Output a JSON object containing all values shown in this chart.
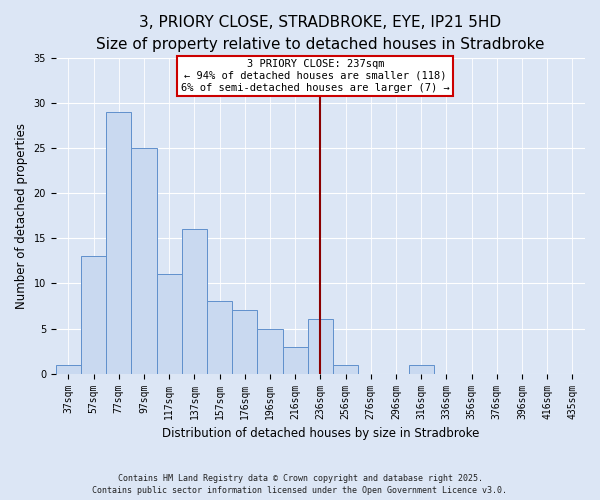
{
  "title": "3, PRIORY CLOSE, STRADBROKE, EYE, IP21 5HD",
  "subtitle": "Size of property relative to detached houses in Stradbroke",
  "xlabel": "Distribution of detached houses by size in Stradbroke",
  "ylabel": "Number of detached properties",
  "bar_labels": [
    "37sqm",
    "57sqm",
    "77sqm",
    "97sqm",
    "117sqm",
    "137sqm",
    "157sqm",
    "176sqm",
    "196sqm",
    "216sqm",
    "236sqm",
    "256sqm",
    "276sqm",
    "296sqm",
    "316sqm",
    "336sqm",
    "356sqm",
    "376sqm",
    "396sqm",
    "416sqm",
    "435sqm"
  ],
  "bar_values": [
    1,
    13,
    29,
    25,
    11,
    16,
    8,
    7,
    5,
    3,
    6,
    1,
    0,
    0,
    1,
    0,
    0,
    0,
    0,
    0,
    0
  ],
  "bar_color": "#c9d9f0",
  "bar_edge_color": "#6090cc",
  "ylim": [
    0,
    35
  ],
  "yticks": [
    0,
    5,
    10,
    15,
    20,
    25,
    30,
    35
  ],
  "vline_color": "#8b0000",
  "annotation_line1": "3 PRIORY CLOSE: 237sqm",
  "annotation_line2": "← 94% of detached houses are smaller (118)",
  "annotation_line3": "6% of semi-detached houses are larger (7) →",
  "annotation_box_color": "#ffffff",
  "annotation_border_color": "#cc0000",
  "footer_line1": "Contains HM Land Registry data © Crown copyright and database right 2025.",
  "footer_line2": "Contains public sector information licensed under the Open Government Licence v3.0.",
  "background_color": "#dce6f5",
  "title_fontsize": 11,
  "subtitle_fontsize": 9.5,
  "tick_fontsize": 7,
  "ylabel_fontsize": 8.5,
  "xlabel_fontsize": 8.5,
  "annotation_fontsize": 7.5,
  "footer_fontsize": 6,
  "vline_bar_index": 10
}
